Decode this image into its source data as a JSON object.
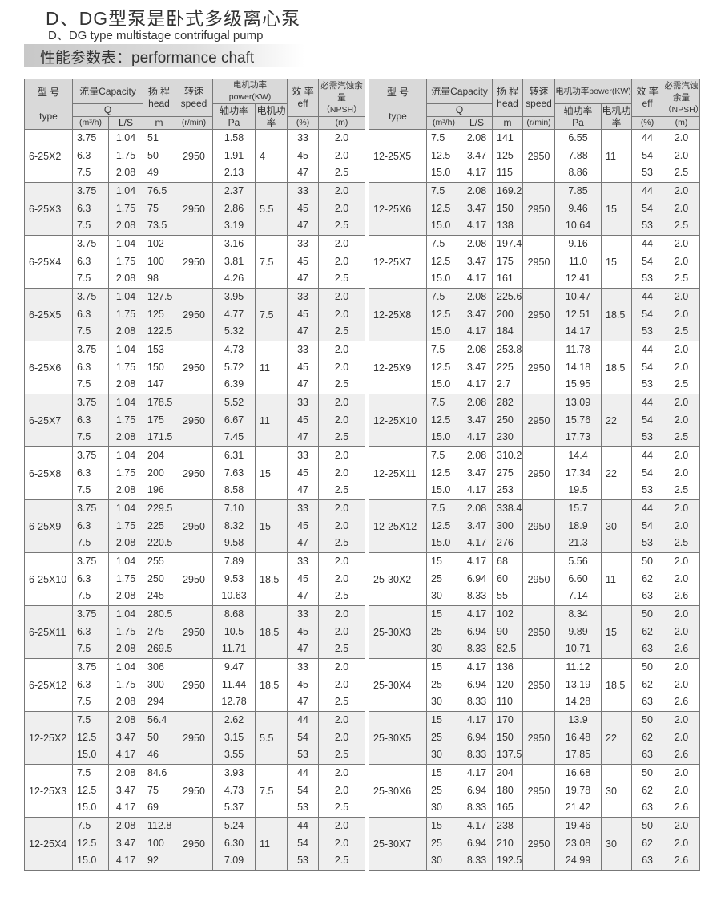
{
  "title_cn": "D、DG型泵是卧式多级离心泵",
  "title_en": "D、DG type multistage contrifugal pump",
  "banner": "性能参数表：performance chaft",
  "headers": {
    "type_cn": "型 号",
    "type_en": "type",
    "capacity": "流量Capacity",
    "q": "Q",
    "m3h": "(m³/h)",
    "ls": "L/S",
    "head_cn": "扬 程",
    "head_en": "head",
    "head_unit": "m",
    "speed_cn": "转速",
    "speed_en": "speed",
    "speed_unit": "(r/min)",
    "power": "电机功率power(KW)",
    "shaft_cn": "轴功率",
    "shaft_unit": "Pa",
    "motor_cn": "电机功率",
    "eff_cn": "效 率",
    "eff_en": "eff",
    "eff_unit": "(%)",
    "npsh_cn": "必需汽蚀余量",
    "npsh_en": "（NPSH）",
    "npsh_unit": "(m)"
  },
  "left": [
    {
      "type": "6-25X2",
      "q": [
        "3.75",
        "6.3",
        "7.5"
      ],
      "ls": [
        "1.04",
        "1.75",
        "2.08"
      ],
      "head": [
        "51",
        "50",
        "49"
      ],
      "speed": "2950",
      "pa": [
        "1.58",
        "1.91",
        "2.13"
      ],
      "motor": "4",
      "eff": [
        "33",
        "45",
        "47"
      ],
      "npsh": [
        "2.0",
        "2.0",
        "2.5"
      ]
    },
    {
      "type": "6-25X3",
      "q": [
        "3.75",
        "6.3",
        "7.5"
      ],
      "ls": [
        "1.04",
        "1.75",
        "2.08"
      ],
      "head": [
        "76.5",
        "75",
        "73.5"
      ],
      "speed": "2950",
      "pa": [
        "2.37",
        "2.86",
        "3.19"
      ],
      "motor": "5.5",
      "eff": [
        "33",
        "45",
        "47"
      ],
      "npsh": [
        "2.0",
        "2.0",
        "2.5"
      ]
    },
    {
      "type": "6-25X4",
      "q": [
        "3.75",
        "6.3",
        "7.5"
      ],
      "ls": [
        "1.04",
        "1.75",
        "2.08"
      ],
      "head": [
        "102",
        "100",
        "98"
      ],
      "speed": "2950",
      "pa": [
        "3.16",
        "3.81",
        "4.26"
      ],
      "motor": "7.5",
      "eff": [
        "33",
        "45",
        "47"
      ],
      "npsh": [
        "2.0",
        "2.0",
        "2.5"
      ]
    },
    {
      "type": "6-25X5",
      "q": [
        "3.75",
        "6.3",
        "7.5"
      ],
      "ls": [
        "1.04",
        "1.75",
        "2.08"
      ],
      "head": [
        "127.5",
        "125",
        "122.5"
      ],
      "speed": "2950",
      "pa": [
        "3.95",
        "4.77",
        "5.32"
      ],
      "motor": "7.5",
      "eff": [
        "33",
        "45",
        "47"
      ],
      "npsh": [
        "2.0",
        "2.0",
        "2.5"
      ]
    },
    {
      "type": "6-25X6",
      "q": [
        "3.75",
        "6.3",
        "7.5"
      ],
      "ls": [
        "1.04",
        "1.75",
        "2.08"
      ],
      "head": [
        "153",
        "150",
        "147"
      ],
      "speed": "2950",
      "pa": [
        "4.73",
        "5.72",
        "6.39"
      ],
      "motor": "11",
      "eff": [
        "33",
        "45",
        "47"
      ],
      "npsh": [
        "2.0",
        "2.0",
        "2.5"
      ]
    },
    {
      "type": "6-25X7",
      "q": [
        "3.75",
        "6.3",
        "7.5"
      ],
      "ls": [
        "1.04",
        "1.75",
        "2.08"
      ],
      "head": [
        "178.5",
        "175",
        "171.5"
      ],
      "speed": "2950",
      "pa": [
        "5.52",
        "6.67",
        "7.45"
      ],
      "motor": "11",
      "eff": [
        "33",
        "45",
        "47"
      ],
      "npsh": [
        "2.0",
        "2.0",
        "2.5"
      ]
    },
    {
      "type": "6-25X8",
      "q": [
        "3.75",
        "6.3",
        "7.5"
      ],
      "ls": [
        "1.04",
        "1.75",
        "2.08"
      ],
      "head": [
        "204",
        "200",
        "196"
      ],
      "speed": "2950",
      "pa": [
        "6.31",
        "7.63",
        "8.58"
      ],
      "motor": "15",
      "eff": [
        "33",
        "45",
        "47"
      ],
      "npsh": [
        "2.0",
        "2.0",
        "2.5"
      ]
    },
    {
      "type": "6-25X9",
      "q": [
        "3.75",
        "6.3",
        "7.5"
      ],
      "ls": [
        "1.04",
        "1.75",
        "2.08"
      ],
      "head": [
        "229.5",
        "225",
        "220.5"
      ],
      "speed": "2950",
      "pa": [
        "7.10",
        "8.32",
        "9.58"
      ],
      "motor": "15",
      "eff": [
        "33",
        "45",
        "47"
      ],
      "npsh": [
        "2.0",
        "2.0",
        "2.5"
      ]
    },
    {
      "type": "6-25X10",
      "q": [
        "3.75",
        "6.3",
        "7.5"
      ],
      "ls": [
        "1.04",
        "1.75",
        "2.08"
      ],
      "head": [
        "255",
        "250",
        "245"
      ],
      "speed": "2950",
      "pa": [
        "7.89",
        "9.53",
        "10.63"
      ],
      "motor": "18.5",
      "eff": [
        "33",
        "45",
        "47"
      ],
      "npsh": [
        "2.0",
        "2.0",
        "2.5"
      ]
    },
    {
      "type": "6-25X11",
      "q": [
        "3.75",
        "6.3",
        "7.5"
      ],
      "ls": [
        "1.04",
        "1.75",
        "2.08"
      ],
      "head": [
        "280.5",
        "275",
        "269.5"
      ],
      "speed": "2950",
      "pa": [
        "8.68",
        "10.5",
        "11.71"
      ],
      "motor": "18.5",
      "eff": [
        "33",
        "45",
        "47"
      ],
      "npsh": [
        "2.0",
        "2.0",
        "2.5"
      ]
    },
    {
      "type": "6-25X12",
      "q": [
        "3.75",
        "6.3",
        "7.5"
      ],
      "ls": [
        "1.04",
        "1.75",
        "2.08"
      ],
      "head": [
        "306",
        "300",
        "294"
      ],
      "speed": "2950",
      "pa": [
        "9.47",
        "11.44",
        "12.78"
      ],
      "motor": "18.5",
      "eff": [
        "33",
        "45",
        "47"
      ],
      "npsh": [
        "2.0",
        "2.0",
        "2.5"
      ]
    },
    {
      "type": "12-25X2",
      "q": [
        "7.5",
        "12.5",
        "15.0"
      ],
      "ls": [
        "2.08",
        "3.47",
        "4.17"
      ],
      "head": [
        "56.4",
        "50",
        "46"
      ],
      "speed": "2950",
      "pa": [
        "2.62",
        "3.15",
        "3.55"
      ],
      "motor": "5.5",
      "eff": [
        "44",
        "54",
        "53"
      ],
      "npsh": [
        "2.0",
        "2.0",
        "2.5"
      ]
    },
    {
      "type": "12-25X3",
      "q": [
        "7.5",
        "12.5",
        "15.0"
      ],
      "ls": [
        "2.08",
        "3.47",
        "4.17"
      ],
      "head": [
        "84.6",
        "75",
        "69"
      ],
      "speed": "2950",
      "pa": [
        "3.93",
        "4.73",
        "5.37"
      ],
      "motor": "7.5",
      "eff": [
        "44",
        "54",
        "53"
      ],
      "npsh": [
        "2.0",
        "2.0",
        "2.5"
      ]
    },
    {
      "type": "12-25X4",
      "q": [
        "7.5",
        "12.5",
        "15.0"
      ],
      "ls": [
        "2.08",
        "3.47",
        "4.17"
      ],
      "head": [
        "112.8",
        "100",
        "92"
      ],
      "speed": "2950",
      "pa": [
        "5.24",
        "6.30",
        "7.09"
      ],
      "motor": "11",
      "eff": [
        "44",
        "54",
        "53"
      ],
      "npsh": [
        "2.0",
        "2.0",
        "2.5"
      ]
    }
  ],
  "right": [
    {
      "type": "12-25X5",
      "q": [
        "7.5",
        "12.5",
        "15.0"
      ],
      "ls": [
        "2.08",
        "3.47",
        "4.17"
      ],
      "head": [
        "141",
        "125",
        "115"
      ],
      "speed": "2950",
      "pa": [
        "6.55",
        "7.88",
        "8.86"
      ],
      "motor": "11",
      "eff": [
        "44",
        "54",
        "53"
      ],
      "npsh": [
        "2.0",
        "2.0",
        "2.5"
      ]
    },
    {
      "type": "12-25X6",
      "q": [
        "7.5",
        "12.5",
        "15.0"
      ],
      "ls": [
        "2.08",
        "3.47",
        "4.17"
      ],
      "head": [
        "169.2",
        "150",
        "138"
      ],
      "speed": "2950",
      "pa": [
        "7.85",
        "9.46",
        "10.64"
      ],
      "motor": "15",
      "eff": [
        "44",
        "54",
        "53"
      ],
      "npsh": [
        "2.0",
        "2.0",
        "2.5"
      ]
    },
    {
      "type": "12-25X7",
      "q": [
        "7.5",
        "12.5",
        "15.0"
      ],
      "ls": [
        "2.08",
        "3.47",
        "4.17"
      ],
      "head": [
        "197.4",
        "175",
        "161"
      ],
      "speed": "2950",
      "pa": [
        "9.16",
        "11.0",
        "12.41"
      ],
      "motor": "15",
      "eff": [
        "44",
        "54",
        "53"
      ],
      "npsh": [
        "2.0",
        "2.0",
        "2.5"
      ]
    },
    {
      "type": "12-25X8",
      "q": [
        "7.5",
        "12.5",
        "15.0"
      ],
      "ls": [
        "2.08",
        "3.47",
        "4.17"
      ],
      "head": [
        "225.6",
        "200",
        "184"
      ],
      "speed": "2950",
      "pa": [
        "10.47",
        "12.51",
        "14.17"
      ],
      "motor": "18.5",
      "eff": [
        "44",
        "54",
        "53"
      ],
      "npsh": [
        "2.0",
        "2.0",
        "2.5"
      ]
    },
    {
      "type": "12-25X9",
      "q": [
        "7.5",
        "12.5",
        "15.0"
      ],
      "ls": [
        "2.08",
        "3.47",
        "4.17"
      ],
      "head": [
        "253.8",
        "225",
        "2.7"
      ],
      "speed": "2950",
      "pa": [
        "11.78",
        "14.18",
        "15.95"
      ],
      "motor": "18.5",
      "eff": [
        "44",
        "54",
        "53"
      ],
      "npsh": [
        "2.0",
        "2.0",
        "2.5"
      ]
    },
    {
      "type": "12-25X10",
      "q": [
        "7.5",
        "12.5",
        "15.0"
      ],
      "ls": [
        "2.08",
        "3.47",
        "4.17"
      ],
      "head": [
        "282",
        "250",
        "230"
      ],
      "speed": "2950",
      "pa": [
        "13.09",
        "15.76",
        "17.73"
      ],
      "motor": "22",
      "eff": [
        "44",
        "54",
        "53"
      ],
      "npsh": [
        "2.0",
        "2.0",
        "2.5"
      ]
    },
    {
      "type": "12-25X11",
      "q": [
        "7.5",
        "12.5",
        "15.0"
      ],
      "ls": [
        "2.08",
        "3.47",
        "4.17"
      ],
      "head": [
        "310.2",
        "275",
        "253"
      ],
      "speed": "2950",
      "pa": [
        "14.4",
        "17.34",
        "19.5"
      ],
      "motor": "22",
      "eff": [
        "44",
        "54",
        "53"
      ],
      "npsh": [
        "2.0",
        "2.0",
        "2.5"
      ]
    },
    {
      "type": "12-25X12",
      "q": [
        "7.5",
        "12.5",
        "15.0"
      ],
      "ls": [
        "2.08",
        "3.47",
        "4.17"
      ],
      "head": [
        "338.4",
        "300",
        "276"
      ],
      "speed": "2950",
      "pa": [
        "15.7",
        "18.9",
        "21.3"
      ],
      "motor": "30",
      "eff": [
        "44",
        "54",
        "53"
      ],
      "npsh": [
        "2.0",
        "2.0",
        "2.5"
      ]
    },
    {
      "type": "25-30X2",
      "q": [
        "15",
        "25",
        "30"
      ],
      "ls": [
        "4.17",
        "6.94",
        "8.33"
      ],
      "head": [
        "68",
        "60",
        "55"
      ],
      "speed": "2950",
      "pa": [
        "5.56",
        "6.60",
        "7.14"
      ],
      "motor": "11",
      "eff": [
        "50",
        "62",
        "63"
      ],
      "npsh": [
        "2.0",
        "2.0",
        "2.6"
      ]
    },
    {
      "type": "25-30X3",
      "q": [
        "15",
        "25",
        "30"
      ],
      "ls": [
        "4.17",
        "6.94",
        "8.33"
      ],
      "head": [
        "102",
        "90",
        "82.5"
      ],
      "speed": "2950",
      "pa": [
        "8.34",
        "9.89",
        "10.71"
      ],
      "motor": "15",
      "eff": [
        "50",
        "62",
        "63"
      ],
      "npsh": [
        "2.0",
        "2.0",
        "2.6"
      ]
    },
    {
      "type": "25-30X4",
      "q": [
        "15",
        "25",
        "30"
      ],
      "ls": [
        "4.17",
        "6.94",
        "8.33"
      ],
      "head": [
        "136",
        "120",
        "110"
      ],
      "speed": "2950",
      "pa": [
        "11.12",
        "13.19",
        "14.28"
      ],
      "motor": "18.5",
      "eff": [
        "50",
        "62",
        "63"
      ],
      "npsh": [
        "2.0",
        "2.0",
        "2.6"
      ]
    },
    {
      "type": "25-30X5",
      "q": [
        "15",
        "25",
        "30"
      ],
      "ls": [
        "4.17",
        "6.94",
        "8.33"
      ],
      "head": [
        "170",
        "150",
        "137.5"
      ],
      "speed": "2950",
      "pa": [
        "13.9",
        "16.48",
        "17.85"
      ],
      "motor": "22",
      "eff": [
        "50",
        "62",
        "63"
      ],
      "npsh": [
        "2.0",
        "2.0",
        "2.6"
      ]
    },
    {
      "type": "25-30X6",
      "q": [
        "15",
        "25",
        "30"
      ],
      "ls": [
        "4.17",
        "6.94",
        "8.33"
      ],
      "head": [
        "204",
        "180",
        "165"
      ],
      "speed": "2950",
      "pa": [
        "16.68",
        "19.78",
        "21.42"
      ],
      "motor": "30",
      "eff": [
        "50",
        "62",
        "63"
      ],
      "npsh": [
        "2.0",
        "2.0",
        "2.6"
      ]
    },
    {
      "type": "25-30X7",
      "q": [
        "15",
        "25",
        "30"
      ],
      "ls": [
        "4.17",
        "6.94",
        "8.33"
      ],
      "head": [
        "238",
        "210",
        "192.5"
      ],
      "speed": "2950",
      "pa": [
        "19.46",
        "23.08",
        "24.99"
      ],
      "motor": "30",
      "eff": [
        "50",
        "62",
        "63"
      ],
      "npsh": [
        "2.0",
        "2.0",
        "2.6"
      ]
    }
  ]
}
